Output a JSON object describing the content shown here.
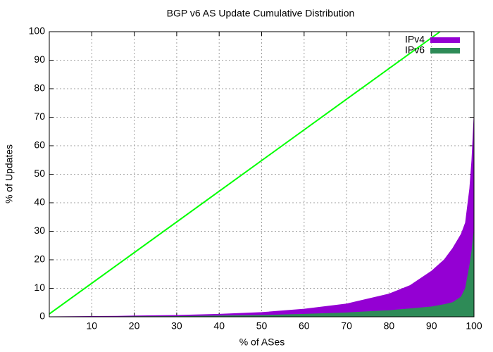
{
  "chart_data": {
    "type": "area",
    "title": "BGP v6 AS Update Cumulative Distribution",
    "xlabel": "% of ASes",
    "ylabel": "% of Updates",
    "x": [
      0,
      16,
      20,
      30,
      40,
      50,
      60,
      70,
      80,
      85,
      90,
      93,
      95,
      97,
      98,
      99,
      99.5,
      100
    ],
    "series": [
      {
        "name": "IPv4",
        "color": "#9400d3",
        "values": [
          0,
          0.2,
          0.3,
          0.5,
          0.9,
          1.5,
          2.7,
          4.5,
          8,
          11,
          16,
          20,
          24,
          29,
          33,
          45,
          55,
          70
        ]
      },
      {
        "name": "IPv6",
        "color": "#2e8b57",
        "values": [
          0,
          0,
          0.05,
          0.1,
          0.3,
          0.5,
          0.9,
          1.4,
          2.2,
          2.8,
          3.5,
          4.3,
          5,
          7,
          10,
          18,
          23,
          30
        ]
      }
    ],
    "reference_line": {
      "color": "#00ff00",
      "x": [
        0,
        92
      ],
      "values": [
        1,
        100
      ]
    },
    "xlim": [
      0,
      100
    ],
    "ylim": [
      0,
      100
    ],
    "xticks": [
      10,
      20,
      30,
      40,
      50,
      60,
      70,
      80,
      90,
      100
    ],
    "yticks": [
      0,
      10,
      20,
      30,
      40,
      50,
      60,
      70,
      80,
      90,
      100
    ],
    "grid": true,
    "legend": "top-right"
  }
}
